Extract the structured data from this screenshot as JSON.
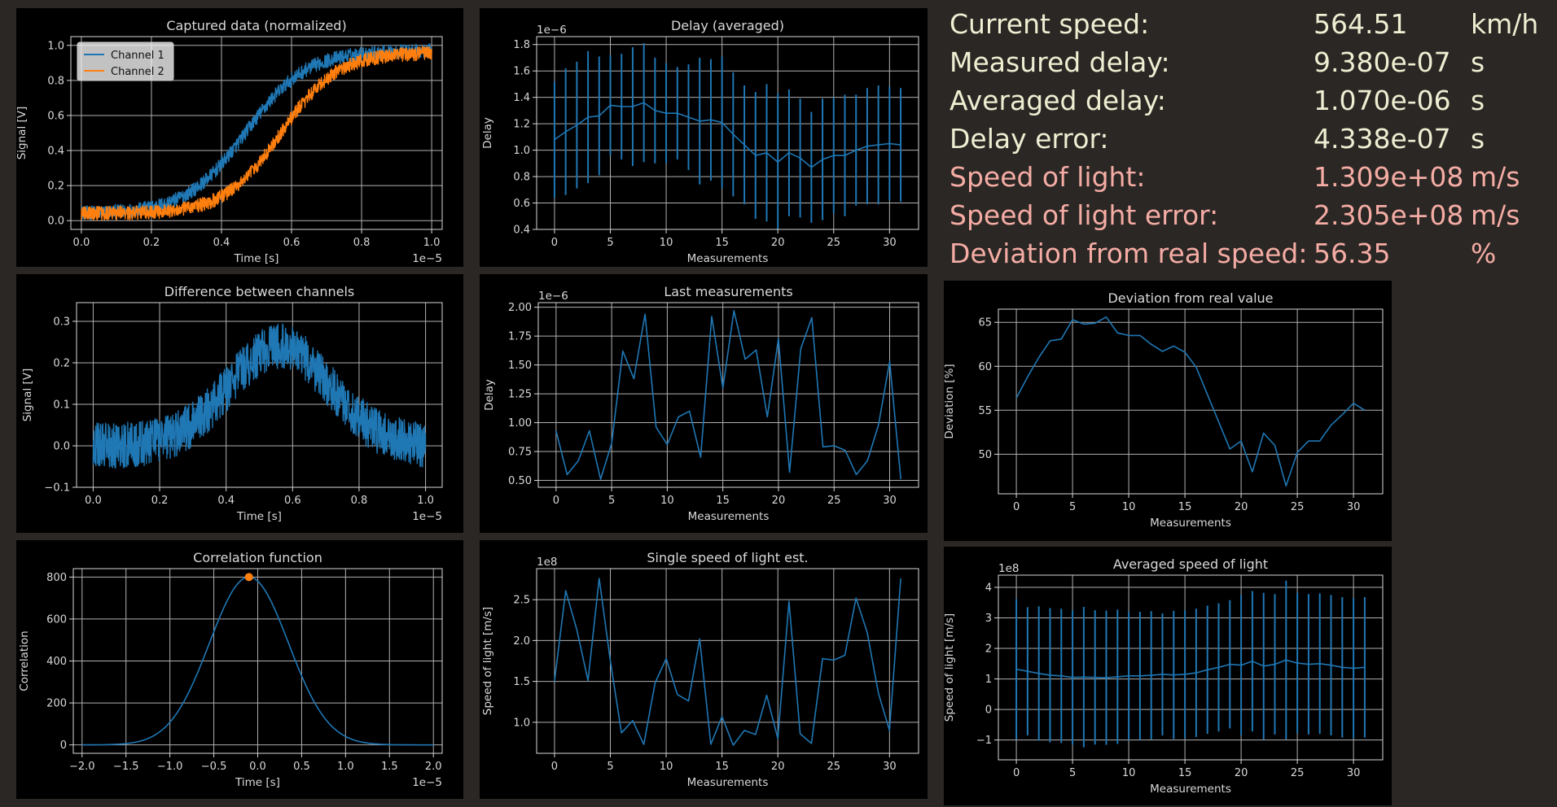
{
  "colors": {
    "background": "#2b2724",
    "panel": "#000000",
    "axis": "#d9d9d9",
    "grid": "#b0b0b0",
    "series_blue": "#1f77b4",
    "series_orange": "#ff7f0e",
    "stat_normal": "#eeeed2",
    "stat_highlight": "#f4aca4"
  },
  "stats": [
    {
      "label": "Current speed:",
      "value": "564.51",
      "unit": "km/h",
      "highlight": false
    },
    {
      "label": "Measured delay:",
      "value": "9.380e-07",
      "unit": "s",
      "highlight": false
    },
    {
      "label": "Averaged delay:",
      "value": "1.070e-06",
      "unit": "s",
      "highlight": false
    },
    {
      "label": "Delay error:",
      "value": "4.338e-07",
      "unit": "s",
      "highlight": false
    },
    {
      "label": "Speed of light:",
      "value": "1.309e+08",
      "unit": "m/s",
      "highlight": true
    },
    {
      "label": "Speed of light error:",
      "value": "2.305e+08",
      "unit": "m/s",
      "highlight": true
    },
    {
      "label": "Deviation from real speed:",
      "value": "56.35",
      "unit": "%",
      "highlight": true
    }
  ],
  "chart_data": [
    {
      "id": "captured",
      "type": "line",
      "title": "Captured data (normalized)",
      "xlabel": "Time [s]",
      "ylabel": "Signal [V]",
      "x_offset_label": "1e−5",
      "y_offset_label": "",
      "xlim": [
        -0.03,
        1.03
      ],
      "ylim": [
        -0.05,
        1.05
      ],
      "xticks": [
        0,
        0.2,
        0.4,
        0.6,
        0.8,
        1.0
      ],
      "xtick_labels": [
        "0.0",
        "0.2",
        "0.4",
        "0.6",
        "0.8",
        "1.0"
      ],
      "yticks": [
        0,
        0.2,
        0.4,
        0.6,
        0.8,
        1.0
      ],
      "ytick_labels": [
        "0.0",
        "0.2",
        "0.4",
        "0.6",
        "0.8",
        "1.0"
      ],
      "grid": true,
      "legend": {
        "position": "top-left",
        "entries": [
          "Channel 1",
          "Channel 2"
        ]
      },
      "series": [
        {
          "name": "Channel 1",
          "color": "#1f77b4",
          "kind": "noisy_sigmoid",
          "center": 0.47,
          "width": 0.085,
          "baseline": 0.04,
          "top": 0.97,
          "noise": 0.04
        },
        {
          "name": "Channel 2",
          "color": "#ff7f0e",
          "kind": "noisy_sigmoid",
          "center": 0.57,
          "width": 0.08,
          "baseline": 0.04,
          "top": 0.96,
          "noise": 0.04
        }
      ]
    },
    {
      "id": "delay_avg",
      "type": "line",
      "title": "Delay (averaged)",
      "xlabel": "Measurements",
      "ylabel": "Delay",
      "x_offset_label": "",
      "y_offset_label": "1e−6",
      "xlim": [
        -1.6,
        32.6
      ],
      "ylim": [
        0.4,
        1.86
      ],
      "xticks": [
        0,
        5,
        10,
        15,
        20,
        25,
        30
      ],
      "xtick_labels": [
        "0",
        "5",
        "10",
        "15",
        "20",
        "25",
        "30"
      ],
      "yticks": [
        0.4,
        0.6,
        0.8,
        1.0,
        1.2,
        1.4,
        1.6,
        1.8
      ],
      "ytick_labels": [
        "0.4",
        "0.6",
        "0.8",
        "1.0",
        "1.2",
        "1.4",
        "1.6",
        "1.8"
      ],
      "grid": true,
      "series": [
        {
          "name": "",
          "color": "#1f77b4",
          "x": [
            0,
            1,
            2,
            3,
            4,
            5,
            6,
            7,
            8,
            9,
            10,
            11,
            12,
            13,
            14,
            15,
            16,
            17,
            18,
            19,
            20,
            21,
            22,
            23,
            24,
            25,
            26,
            27,
            28,
            29,
            30,
            31
          ],
          "values": [
            1.08,
            1.14,
            1.19,
            1.25,
            1.26,
            1.34,
            1.33,
            1.33,
            1.36,
            1.3,
            1.28,
            1.28,
            1.25,
            1.22,
            1.23,
            1.21,
            1.12,
            1.04,
            0.96,
            0.98,
            0.91,
            0.98,
            0.94,
            0.87,
            0.93,
            0.96,
            0.96,
            1.0,
            1.03,
            1.04,
            1.05,
            1.04
          ],
          "errors": [
            0.44,
            0.48,
            0.48,
            0.5,
            0.45,
            0.38,
            0.4,
            0.45,
            0.45,
            0.4,
            0.38,
            0.35,
            0.4,
            0.48,
            0.46,
            0.5,
            0.47,
            0.45,
            0.48,
            0.52,
            0.52,
            0.48,
            0.45,
            0.42,
            0.46,
            0.44,
            0.46,
            0.42,
            0.44,
            0.45,
            0.43,
            0.43
          ]
        }
      ]
    },
    {
      "id": "difference",
      "type": "line",
      "title": "Difference between channels",
      "xlabel": "Time [s]",
      "ylabel": "Signal [V]",
      "x_offset_label": "1e−5",
      "y_offset_label": "",
      "xlim": [
        -0.05,
        1.05
      ],
      "ylim": [
        -0.1,
        0.345
      ],
      "xticks": [
        0,
        0.2,
        0.4,
        0.6,
        0.8,
        1.0
      ],
      "xtick_labels": [
        "0.0",
        "0.2",
        "0.4",
        "0.6",
        "0.8",
        "1.0"
      ],
      "yticks": [
        -0.1,
        0,
        0.1,
        0.2,
        0.3
      ],
      "ytick_labels": [
        "−0.1",
        "0.0",
        "0.1",
        "0.2",
        "0.3"
      ],
      "grid": true,
      "series": [
        {
          "name": "",
          "color": "#1f77b4",
          "kind": "noisy_bump",
          "center": 0.56,
          "width": 0.15,
          "baseline": 0.0,
          "peak": 0.24,
          "noise": 0.055
        }
      ]
    },
    {
      "id": "last_meas",
      "type": "line",
      "title": "Last measurements",
      "xlabel": "Measurements",
      "ylabel": "Delay",
      "x_offset_label": "",
      "y_offset_label": "1e−6",
      "xlim": [
        -1.6,
        32.6
      ],
      "ylim": [
        0.44,
        2.04
      ],
      "xticks": [
        0,
        5,
        10,
        15,
        20,
        25,
        30
      ],
      "xtick_labels": [
        "0",
        "5",
        "10",
        "15",
        "20",
        "25",
        "30"
      ],
      "yticks": [
        0.5,
        0.75,
        1.0,
        1.25,
        1.5,
        1.75,
        2.0
      ],
      "ytick_labels": [
        "0.50",
        "0.75",
        "1.00",
        "1.25",
        "1.50",
        "1.75",
        "2.00"
      ],
      "grid": true,
      "series": [
        {
          "name": "",
          "color": "#1f77b4",
          "x": [
            0,
            1,
            2,
            3,
            4,
            5,
            6,
            7,
            8,
            9,
            10,
            11,
            12,
            13,
            14,
            15,
            16,
            17,
            18,
            19,
            20,
            21,
            22,
            23,
            24,
            25,
            26,
            27,
            28,
            29,
            30,
            31
          ],
          "values": [
            0.93,
            0.55,
            0.67,
            0.93,
            0.51,
            0.82,
            1.62,
            1.38,
            1.94,
            0.96,
            0.81,
            1.05,
            1.1,
            0.7,
            1.92,
            1.3,
            1.97,
            1.55,
            1.63,
            1.05,
            1.73,
            0.57,
            1.64,
            1.91,
            0.79,
            0.8,
            0.76,
            0.55,
            0.67,
            0.98,
            1.53,
            0.51
          ]
        }
      ]
    },
    {
      "id": "deviation",
      "type": "line",
      "title": "Deviation from real value",
      "xlabel": "Measurements",
      "ylabel": "Deviation [%]",
      "x_offset_label": "",
      "y_offset_label": "",
      "xlim": [
        -1.6,
        32.6
      ],
      "ylim": [
        45.5,
        66.5
      ],
      "xticks": [
        0,
        5,
        10,
        15,
        20,
        25,
        30
      ],
      "xtick_labels": [
        "0",
        "5",
        "10",
        "15",
        "20",
        "25",
        "30"
      ],
      "yticks": [
        50,
        55,
        60,
        65
      ],
      "ytick_labels": [
        "50",
        "55",
        "60",
        "65"
      ],
      "grid": true,
      "series": [
        {
          "name": "",
          "color": "#1f77b4",
          "x": [
            0,
            1,
            2,
            3,
            4,
            5,
            6,
            7,
            8,
            9,
            10,
            11,
            12,
            13,
            14,
            15,
            16,
            17,
            18,
            19,
            20,
            21,
            22,
            23,
            24,
            25,
            26,
            27,
            28,
            29,
            30,
            31
          ],
          "values": [
            56.4,
            58.8,
            61.0,
            62.9,
            63.1,
            65.3,
            64.8,
            64.9,
            65.6,
            63.8,
            63.5,
            63.5,
            62.5,
            61.7,
            62.3,
            61.6,
            59.9,
            56.8,
            53.7,
            50.6,
            51.5,
            48.0,
            52.4,
            51.0,
            46.4,
            50.2,
            51.5,
            51.5,
            53.3,
            54.5,
            55.8,
            55.0
          ]
        }
      ]
    },
    {
      "id": "corr",
      "type": "line",
      "title": "Correlation function",
      "xlabel": "Time [s]",
      "ylabel": "Correlation",
      "x_offset_label": "1e−5",
      "y_offset_label": "",
      "xlim": [
        -2.1,
        2.1
      ],
      "ylim": [
        -40,
        840
      ],
      "xticks": [
        -2.0,
        -1.5,
        -1.0,
        -0.5,
        0,
        0.5,
        1.0,
        1.5,
        2.0
      ],
      "xtick_labels": [
        "−2.0",
        "−1.5",
        "−1.0",
        "−0.5",
        "0.0",
        "0.5",
        "1.0",
        "1.5",
        "2.0"
      ],
      "yticks": [
        0,
        200,
        400,
        600,
        800
      ],
      "ytick_labels": [
        "0",
        "200",
        "400",
        "600",
        "800"
      ],
      "grid": true,
      "series": [
        {
          "name": "",
          "color": "#1f77b4",
          "kind": "gaussian",
          "center": -0.1,
          "sigma": 0.45,
          "amplitude": 800
        },
        {
          "name": "",
          "color": "#ff7f0e",
          "kind": "marker",
          "x": [
            -0.1
          ],
          "values": [
            800
          ]
        }
      ]
    },
    {
      "id": "single_speed",
      "type": "line",
      "title": "Single speed of light est.",
      "xlabel": "Measurements",
      "ylabel": "Speed of light [m/s]",
      "x_offset_label": "",
      "y_offset_label": "1e8",
      "xlim": [
        -1.6,
        32.6
      ],
      "ylim": [
        0.62,
        2.88
      ],
      "xticks": [
        0,
        5,
        10,
        15,
        20,
        25,
        30
      ],
      "xtick_labels": [
        "0",
        "5",
        "10",
        "15",
        "20",
        "25",
        "30"
      ],
      "yticks": [
        1.0,
        1.5,
        2.0,
        2.5
      ],
      "ytick_labels": [
        "1.0",
        "1.5",
        "2.0",
        "2.5"
      ],
      "grid": true,
      "series": [
        {
          "name": "",
          "color": "#1f77b4",
          "x": [
            0,
            1,
            2,
            3,
            4,
            5,
            6,
            7,
            8,
            9,
            10,
            11,
            12,
            13,
            14,
            15,
            16,
            17,
            18,
            19,
            20,
            21,
            22,
            23,
            24,
            25,
            26,
            27,
            28,
            29,
            30,
            31
          ],
          "values": [
            1.5,
            2.61,
            2.13,
            1.51,
            2.76,
            1.75,
            0.87,
            1.02,
            0.73,
            1.48,
            1.78,
            1.34,
            1.26,
            2.02,
            0.73,
            1.07,
            0.72,
            0.9,
            0.85,
            1.33,
            0.8,
            2.48,
            0.86,
            0.74,
            1.78,
            1.76,
            1.82,
            2.52,
            2.1,
            1.36,
            0.9,
            2.76
          ]
        }
      ]
    },
    {
      "id": "avg_speed",
      "type": "line",
      "title": "Averaged speed of light",
      "xlabel": "Measurements",
      "ylabel": "Speed of light [m/s]",
      "x_offset_label": "",
      "y_offset_label": "1e8",
      "xlim": [
        -1.6,
        32.6
      ],
      "ylim": [
        -1.65,
        4.4
      ],
      "xticks": [
        0,
        5,
        10,
        15,
        20,
        25,
        30
      ],
      "xtick_labels": [
        "0",
        "5",
        "10",
        "15",
        "20",
        "25",
        "30"
      ],
      "yticks": [
        -1,
        0,
        1,
        2,
        3,
        4
      ],
      "ytick_labels": [
        "−1",
        "0",
        "1",
        "2",
        "3",
        "4"
      ],
      "grid": true,
      "series": [
        {
          "name": "",
          "color": "#1f77b4",
          "x": [
            0,
            1,
            2,
            3,
            4,
            5,
            6,
            7,
            8,
            9,
            10,
            11,
            12,
            13,
            14,
            15,
            16,
            17,
            18,
            19,
            20,
            21,
            22,
            23,
            24,
            25,
            26,
            27,
            28,
            29,
            30,
            31
          ],
          "values": [
            1.32,
            1.25,
            1.18,
            1.12,
            1.1,
            1.05,
            1.06,
            1.05,
            1.04,
            1.07,
            1.1,
            1.1,
            1.12,
            1.15,
            1.13,
            1.15,
            1.2,
            1.3,
            1.38,
            1.48,
            1.45,
            1.58,
            1.42,
            1.48,
            1.62,
            1.52,
            1.48,
            1.5,
            1.45,
            1.38,
            1.35,
            1.38
          ],
          "errors": [
            2.3,
            2.1,
            2.2,
            2.2,
            2.2,
            2.2,
            2.3,
            2.2,
            2.2,
            2.2,
            2.1,
            2.1,
            2.1,
            2.0,
            2.1,
            2.1,
            2.1,
            2.1,
            2.1,
            2.1,
            2.3,
            2.3,
            2.4,
            2.3,
            2.6,
            2.3,
            2.3,
            2.3,
            2.3,
            2.3,
            2.3,
            2.3
          ]
        }
      ]
    }
  ]
}
